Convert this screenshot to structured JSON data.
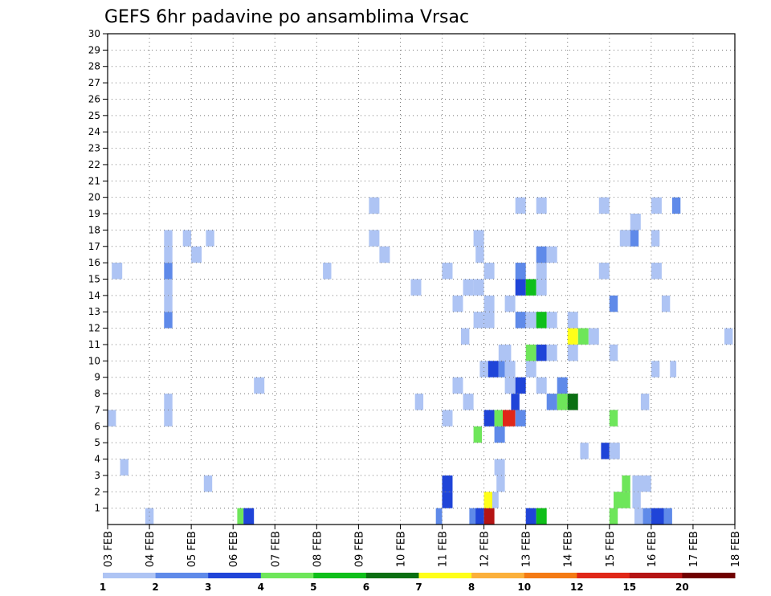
{
  "chart_data": {
    "type": "heatmap",
    "title": "GEFS 6hr padavine po ansamblima Vrsac",
    "xlabel": "",
    "ylabel": "",
    "x_ticks": [
      "03 FEB",
      "04 FEB",
      "05 FEB",
      "06 FEB",
      "07 FEB",
      "08 FEB",
      "09 FEB",
      "10 FEB",
      "11 FEB",
      "12 FEB",
      "13 FEB",
      "14 FEB",
      "15 FEB",
      "16 FEB",
      "17 FEB",
      "18 FEB"
    ],
    "x_range_days": [
      0,
      15
    ],
    "y_ticks": [
      "1",
      "2",
      "3",
      "4",
      "5",
      "6",
      "7",
      "8",
      "9",
      "10",
      "11",
      "12",
      "13",
      "14",
      "15",
      "16",
      "17",
      "18",
      "19",
      "20",
      "21",
      "22",
      "23",
      "24",
      "25",
      "26",
      "27",
      "28",
      "29",
      "30"
    ],
    "y_range": [
      0,
      30
    ],
    "grid": true,
    "colorbar": {
      "orientation": "horizontal",
      "placement": "bottom",
      "levels": [
        "1",
        "2",
        "3",
        "4",
        "5",
        "6",
        "7",
        "8",
        "10",
        "12",
        "15",
        "20"
      ],
      "colors": [
        "#aec4f4",
        "#5f8ae9",
        "#1f44d8",
        "#6ee65a",
        "#0fbf1a",
        "#0a6f12",
        "#ffff19",
        "#fbb03b",
        "#f47a14",
        "#e02718",
        "#b51414",
        "#700000"
      ]
    },
    "cells": [
      {
        "m": 0,
        "d": [
          [
            0.9,
            1.1,
            0
          ],
          [
            3.1,
            3.25,
            3
          ],
          [
            3.25,
            3.5,
            2
          ],
          [
            7.85,
            8.0,
            1
          ],
          [
            8.65,
            8.9,
            1
          ],
          [
            8.8,
            9.0,
            2
          ],
          [
            9.0,
            9.25,
            10
          ],
          [
            10.0,
            10.25,
            2
          ],
          [
            10.25,
            10.5,
            4
          ],
          [
            12.0,
            12.2,
            3
          ],
          [
            12.6,
            12.8,
            0
          ],
          [
            12.8,
            13.0,
            1
          ],
          [
            13.0,
            13.3,
            2
          ],
          [
            13.3,
            13.5,
            1
          ]
        ]
      },
      {
        "m": 1,
        "d": [
          [
            8.0,
            8.25,
            2
          ],
          [
            9.0,
            9.2,
            6
          ],
          [
            9.2,
            9.35,
            0
          ],
          [
            12.1,
            12.5,
            3
          ],
          [
            12.55,
            12.75,
            0
          ]
        ]
      },
      {
        "m": 2,
        "d": [
          [
            2.3,
            2.5,
            0
          ],
          [
            8.0,
            8.25,
            2
          ],
          [
            9.3,
            9.5,
            0
          ],
          [
            12.3,
            12.5,
            3
          ],
          [
            12.55,
            13.0,
            0
          ]
        ]
      },
      {
        "m": 3,
        "d": [
          [
            0.3,
            0.5,
            0
          ],
          [
            9.25,
            9.5,
            0
          ]
        ]
      },
      {
        "m": 4,
        "d": [
          [
            11.3,
            11.5,
            0
          ],
          [
            11.8,
            12.0,
            2
          ],
          [
            12.0,
            12.25,
            0
          ]
        ]
      },
      {
        "m": 5,
        "d": [
          [
            9.25,
            9.5,
            1
          ],
          [
            8.75,
            8.95,
            3
          ]
        ]
      },
      {
        "m": 6,
        "d": [
          [
            0.0,
            0.2,
            0
          ],
          [
            1.35,
            1.55,
            0
          ],
          [
            8.0,
            8.25,
            0
          ],
          [
            9.0,
            9.25,
            2
          ],
          [
            9.25,
            9.45,
            3
          ],
          [
            9.45,
            9.75,
            9
          ],
          [
            9.75,
            10.0,
            1
          ],
          [
            12.0,
            12.2,
            3
          ]
        ]
      },
      {
        "m": 7,
        "d": [
          [
            1.35,
            1.55,
            0
          ],
          [
            7.35,
            7.55,
            0
          ],
          [
            8.5,
            8.75,
            0
          ],
          [
            9.65,
            9.85,
            2
          ],
          [
            10.5,
            10.75,
            1
          ],
          [
            12.75,
            12.95,
            0
          ],
          [
            10.75,
            11.0,
            3
          ],
          [
            11.0,
            11.25,
            5
          ]
        ]
      },
      {
        "m": 8,
        "d": [
          [
            3.5,
            3.75,
            0
          ],
          [
            8.25,
            8.5,
            0
          ],
          [
            9.5,
            9.75,
            0
          ],
          [
            9.75,
            10.0,
            2
          ],
          [
            10.25,
            10.5,
            0
          ],
          [
            10.75,
            11.0,
            1
          ]
        ]
      },
      {
        "m": 9,
        "d": [
          [
            8.9,
            9.1,
            0
          ],
          [
            9.1,
            9.35,
            2
          ],
          [
            9.35,
            9.5,
            1
          ],
          [
            9.5,
            9.75,
            0
          ],
          [
            10.0,
            10.25,
            0
          ],
          [
            13.0,
            13.2,
            0
          ],
          [
            13.45,
            13.6,
            0
          ]
        ]
      },
      {
        "m": 10,
        "d": [
          [
            9.35,
            9.65,
            0
          ],
          [
            10.0,
            10.25,
            3
          ],
          [
            10.25,
            10.5,
            2
          ],
          [
            10.5,
            10.75,
            0
          ],
          [
            11.0,
            11.25,
            0
          ],
          [
            12.0,
            12.2,
            0
          ]
        ]
      },
      {
        "m": 11,
        "d": [
          [
            8.45,
            8.65,
            0
          ],
          [
            11.0,
            11.25,
            6
          ],
          [
            11.25,
            11.5,
            3
          ],
          [
            11.5,
            11.75,
            0
          ],
          [
            14.75,
            14.95,
            0
          ]
        ]
      },
      {
        "m": 12,
        "d": [
          [
            1.35,
            1.55,
            1
          ],
          [
            8.75,
            9.0,
            0
          ],
          [
            9.0,
            9.25,
            0
          ],
          [
            9.75,
            10.0,
            1
          ],
          [
            10.0,
            10.25,
            0
          ],
          [
            10.25,
            10.5,
            4
          ],
          [
            10.5,
            10.75,
            0
          ],
          [
            11.0,
            11.25,
            0
          ]
        ]
      },
      {
        "m": 13,
        "d": [
          [
            1.35,
            1.55,
            0
          ],
          [
            8.25,
            8.5,
            0
          ],
          [
            9.0,
            9.25,
            0
          ],
          [
            9.5,
            9.75,
            0
          ],
          [
            12.0,
            12.2,
            1
          ],
          [
            13.25,
            13.45,
            0
          ]
        ]
      },
      {
        "m": 14,
        "d": [
          [
            1.35,
            1.55,
            0
          ],
          [
            7.25,
            7.5,
            0
          ],
          [
            8.5,
            8.75,
            0
          ],
          [
            8.75,
            9.0,
            0
          ],
          [
            9.75,
            10.0,
            2
          ],
          [
            10.0,
            10.25,
            4
          ],
          [
            10.25,
            10.5,
            0
          ]
        ]
      },
      {
        "m": 15,
        "d": [
          [
            0.1,
            0.35,
            0
          ],
          [
            1.35,
            1.55,
            1
          ],
          [
            5.15,
            5.35,
            0
          ],
          [
            8.0,
            8.25,
            0
          ],
          [
            9.0,
            9.25,
            0
          ],
          [
            9.75,
            10.0,
            1
          ],
          [
            10.25,
            10.5,
            0
          ],
          [
            11.75,
            12.0,
            0
          ],
          [
            13.0,
            13.25,
            0
          ]
        ]
      },
      {
        "m": 16,
        "d": [
          [
            1.35,
            1.55,
            0
          ],
          [
            2.0,
            2.25,
            0
          ],
          [
            6.5,
            6.75,
            0
          ],
          [
            8.8,
            9.0,
            0
          ],
          [
            10.25,
            10.5,
            1
          ],
          [
            10.5,
            10.75,
            0
          ]
        ]
      },
      {
        "m": 17,
        "d": [
          [
            1.35,
            1.55,
            0
          ],
          [
            1.8,
            2.0,
            0
          ],
          [
            2.35,
            2.55,
            0
          ],
          [
            6.25,
            6.5,
            0
          ],
          [
            8.75,
            9.0,
            0
          ],
          [
            12.25,
            12.5,
            0
          ],
          [
            12.5,
            12.7,
            1
          ],
          [
            13.0,
            13.2,
            0
          ]
        ]
      },
      {
        "m": 18,
        "d": [
          [
            12.5,
            12.75,
            0
          ]
        ]
      },
      {
        "m": 19,
        "d": [
          [
            6.25,
            6.5,
            0
          ],
          [
            9.75,
            10.0,
            0
          ],
          [
            10.25,
            10.5,
            0
          ],
          [
            11.75,
            12.0,
            0
          ],
          [
            13.0,
            13.25,
            0
          ],
          [
            13.5,
            13.7,
            1
          ]
        ]
      }
    ]
  }
}
